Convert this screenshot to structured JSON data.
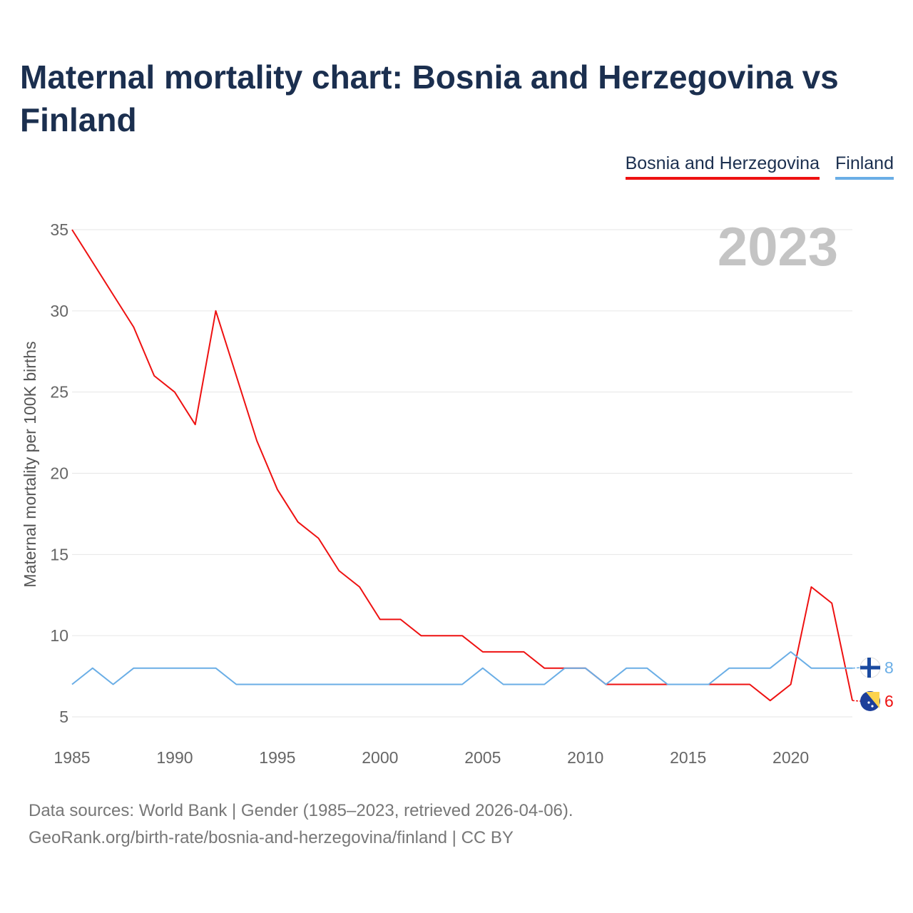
{
  "title": "Maternal mortality chart: Bosnia and Herzegovina vs Finland",
  "legend": {
    "bosnia": "Bosnia and Herzegovina",
    "finland": "Finland"
  },
  "year_watermark": "2023",
  "source": {
    "line1": "Data sources: World Bank | Gender (1985–2023, retrieved 2026-04-06).",
    "line2": "GeoRank.org/birth-rate/bosnia-and-herzegovina/finland | CC BY"
  },
  "chart_data": {
    "type": "line",
    "title": "Maternal mortality chart: Bosnia and Herzegovina vs Finland",
    "ylabel": "Maternal mortality per 100K births",
    "xlabel": "",
    "xlim": [
      1985,
      2023
    ],
    "ylim": [
      5,
      35
    ],
    "x_ticks": [
      1985,
      1990,
      1995,
      2000,
      2005,
      2010,
      2015,
      2020
    ],
    "y_ticks": [
      5,
      10,
      15,
      20,
      25,
      30,
      35
    ],
    "grid": true,
    "x": [
      1985,
      1986,
      1987,
      1988,
      1989,
      1990,
      1991,
      1992,
      1993,
      1994,
      1995,
      1996,
      1997,
      1998,
      1999,
      2000,
      2001,
      2002,
      2003,
      2004,
      2005,
      2006,
      2007,
      2008,
      2009,
      2010,
      2011,
      2012,
      2013,
      2014,
      2015,
      2016,
      2017,
      2018,
      2019,
      2020,
      2021,
      2022,
      2023
    ],
    "series": [
      {
        "name": "Bosnia and Herzegovina",
        "color": "#ee1111",
        "end_label": "6",
        "values": [
          35,
          33,
          31,
          29,
          26,
          25,
          23,
          30,
          26,
          22,
          19,
          17,
          16,
          14,
          13,
          11,
          11,
          10,
          10,
          10,
          9,
          9,
          9,
          8,
          8,
          8,
          7,
          7,
          7,
          7,
          7,
          7,
          7,
          7,
          6,
          7,
          13,
          12,
          6
        ]
      },
      {
        "name": "Finland",
        "color": "#6aaee6",
        "end_label": "8",
        "values": [
          7,
          8,
          7,
          8,
          8,
          8,
          8,
          8,
          7,
          7,
          7,
          7,
          7,
          7,
          7,
          7,
          7,
          7,
          7,
          7,
          8,
          7,
          7,
          7,
          8,
          8,
          7,
          8,
          8,
          7,
          7,
          7,
          8,
          8,
          8,
          9,
          8,
          8,
          8
        ]
      }
    ]
  }
}
